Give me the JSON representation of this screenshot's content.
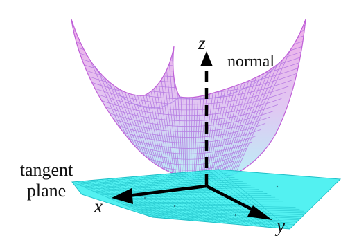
{
  "figure": {
    "labels": {
      "tangent_line1": "tangent",
      "tangent_line2": "plane",
      "normal": "normal",
      "x": "x",
      "y": "y",
      "z": "z"
    },
    "colors": {
      "surface_top": "#e36ad6",
      "surface_mid": "#c79ae8",
      "surface_bottom": "#7fe6f0",
      "plane_fill": "#40f0f0",
      "plane_mesh": "#1fc0c8",
      "axes": "#000000",
      "text": "#111111",
      "background": "#ffffff"
    },
    "shapes": {
      "surface": "paraboloid-mesh",
      "plane": "tangent-plane-mesh",
      "normal": "dashed-normal-arrow"
    }
  }
}
